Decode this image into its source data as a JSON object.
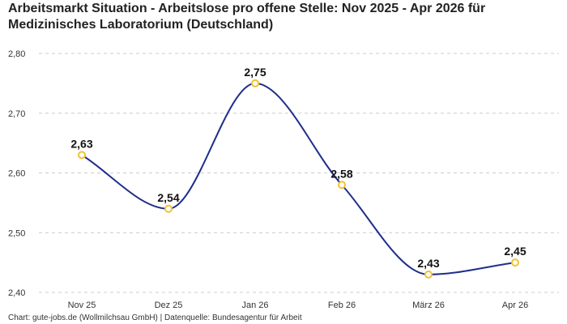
{
  "chart_data": {
    "type": "line",
    "title": "Arbeitsmarkt Situation - Arbeitslose pro offene Stelle: Nov 2025 - Apr 2026 für Medizinisches Laboratorium (Deutschland)",
    "categories": [
      "Nov 25",
      "Dez 25",
      "Jan 26",
      "Feb 26",
      "März 26",
      "Apr 26"
    ],
    "series": [
      {
        "values": [
          2.63,
          2.54,
          2.75,
          2.58,
          2.43,
          2.45
        ],
        "data_labels": [
          "2,63",
          "2,54",
          "2,75",
          "2,58",
          "2,43",
          "2,45"
        ]
      }
    ],
    "y_ticks": [
      2.4,
      2.5,
      2.6,
      2.7,
      2.8
    ],
    "y_tick_labels": [
      "2,40",
      "2,50",
      "2,60",
      "2,70",
      "2,80"
    ],
    "ylim": [
      2.4,
      2.8
    ],
    "grid": "horizontal-dashed",
    "line_smooth": true,
    "colors": {
      "line": "#1f2e8a",
      "marker_stroke": "#f2c230",
      "marker_fill": "#ffffff",
      "grid": "#cccccc"
    }
  },
  "footer": {
    "note": "Chart: gute-jobs.de (Wollmilchsau GmbH) | Datenquelle: Bundesagentur für Arbeit"
  }
}
